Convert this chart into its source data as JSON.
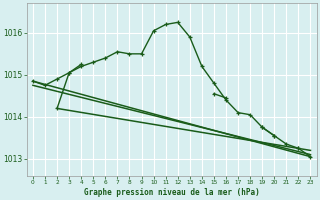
{
  "background_color": "#d8eff0",
  "grid_color": "#ffffff",
  "line_color": "#1a5c1a",
  "title": "Graphe pression niveau de la mer (hPa)",
  "xlim": [
    -0.5,
    23.5
  ],
  "ylim": [
    1012.6,
    1016.7
  ],
  "yticks": [
    1013,
    1014,
    1015,
    1016
  ],
  "xticks": [
    0,
    1,
    2,
    3,
    4,
    5,
    6,
    7,
    8,
    9,
    10,
    11,
    12,
    13,
    14,
    15,
    16,
    17,
    18,
    19,
    20,
    21,
    22,
    23
  ],
  "series": [
    {
      "x": [
        0,
        1,
        2,
        3,
        4,
        5,
        6,
        7,
        8,
        9,
        10,
        11,
        12,
        13,
        14,
        15,
        16,
        17,
        18,
        19,
        20,
        21,
        22,
        23
      ],
      "y": [
        1014.85,
        1014.75,
        1014.9,
        1015.05,
        1015.2,
        1015.3,
        1015.4,
        1015.55,
        1015.5,
        1015.5,
        1016.05,
        1016.2,
        1016.25,
        1015.9,
        1015.2,
        1014.8,
        1014.4,
        1014.1,
        1014.05,
        1013.75,
        1013.55,
        1013.35,
        1013.25,
        1013.05
      ],
      "markers": true,
      "lw": 1.0
    },
    {
      "x": [
        2,
        3,
        4,
        5,
        6,
        7,
        8,
        9,
        10,
        11,
        12,
        13,
        14,
        15,
        16,
        17,
        18,
        19,
        20,
        21,
        22,
        23
      ],
      "y": [
        1014.2,
        1015.05,
        1015.25,
        null,
        null,
        null,
        null,
        null,
        null,
        null,
        null,
        null,
        null,
        1014.55,
        1014.45,
        null,
        null,
        1013.75,
        1013.55,
        null,
        1013.25,
        null
      ],
      "markers": true,
      "lw": 1.0
    },
    {
      "x": [
        0,
        23
      ],
      "y": [
        1014.85,
        1013.05
      ],
      "markers": false,
      "lw": 1.1
    },
    {
      "x": [
        0,
        23
      ],
      "y": [
        1014.75,
        1013.1
      ],
      "markers": false,
      "lw": 1.1
    },
    {
      "x": [
        2,
        23
      ],
      "y": [
        1014.2,
        1013.2
      ],
      "markers": false,
      "lw": 1.1
    }
  ]
}
